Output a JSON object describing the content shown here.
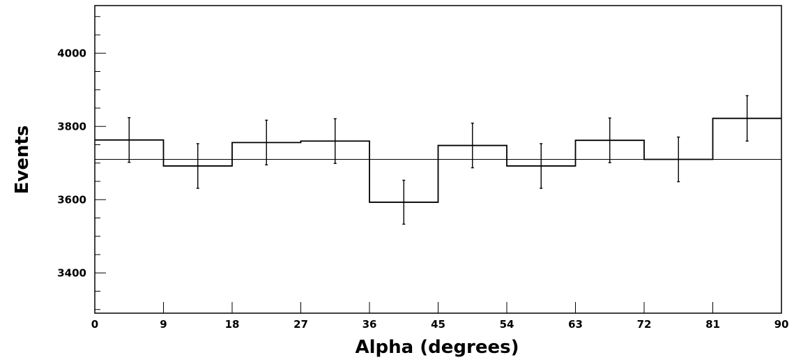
{
  "chart_data": {
    "type": "histogram",
    "xlabel": "Alpha (degrees)",
    "ylabel": "Events",
    "xlim": [
      0,
      90
    ],
    "ylim": [
      3290,
      4130
    ],
    "x_ticks": [
      0,
      9,
      18,
      27,
      36,
      45,
      54,
      63,
      72,
      81,
      90
    ],
    "y_ticks": [
      3400,
      3600,
      3800,
      4000
    ],
    "bin_edges": [
      0,
      9,
      18,
      27,
      36,
      45,
      54,
      63,
      72,
      81,
      90
    ],
    "values": [
      3763,
      3692,
      3756,
      3760,
      3593,
      3748,
      3692,
      3762,
      3710,
      3822
    ],
    "errors": [
      61,
      61,
      61,
      61,
      60,
      61,
      61,
      61,
      61,
      62
    ],
    "fit_line": 3710,
    "grid": false
  }
}
